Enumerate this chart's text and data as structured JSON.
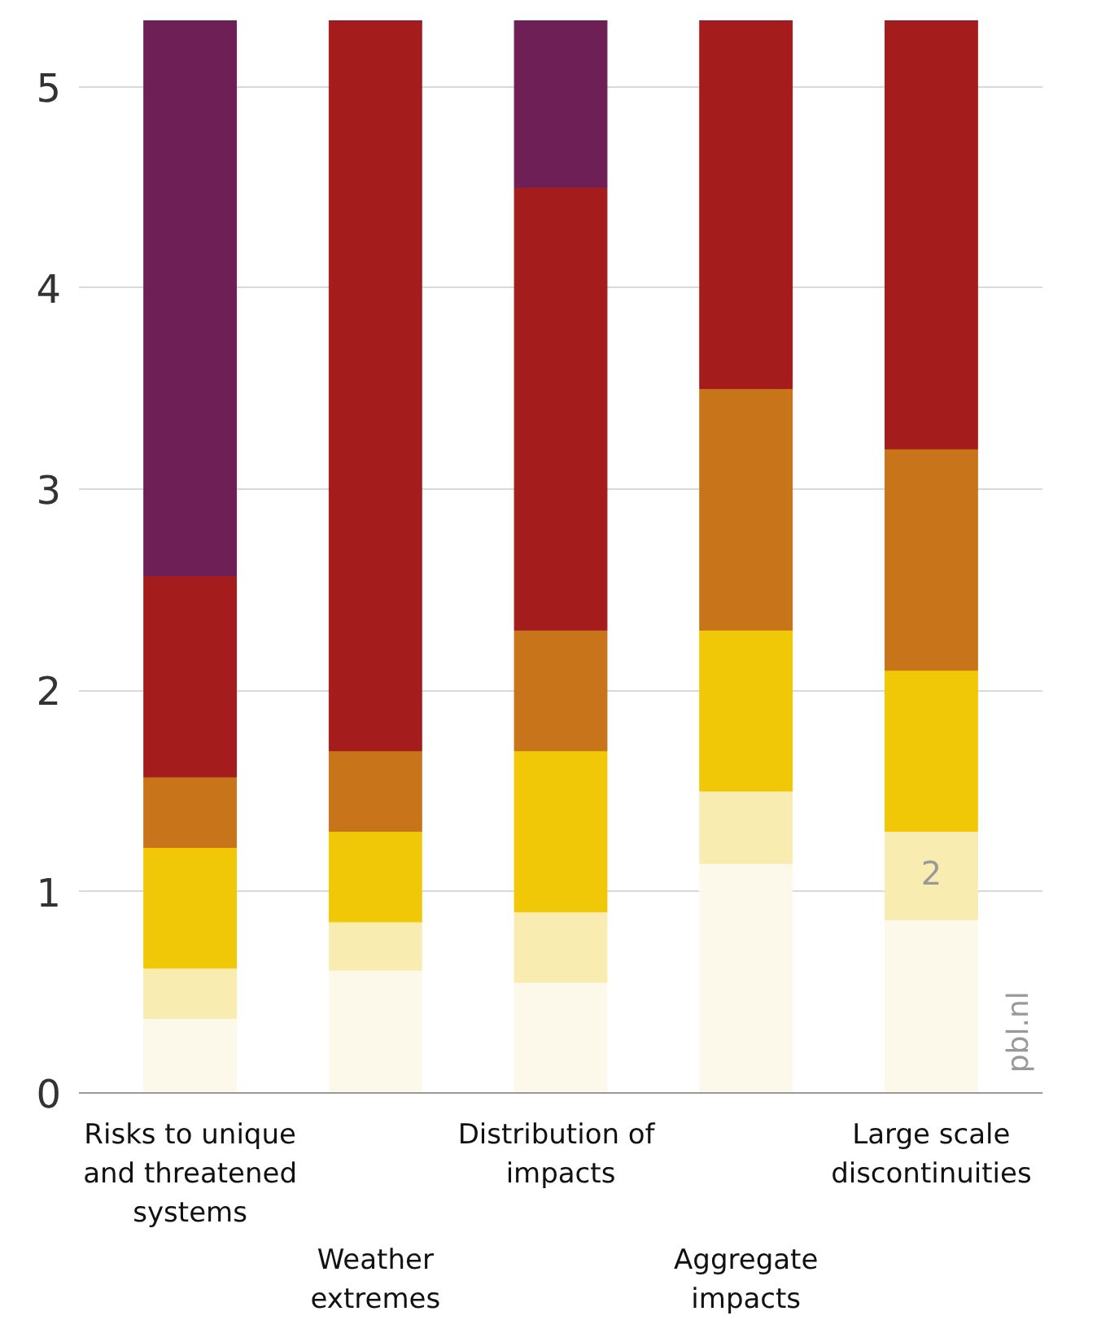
{
  "chart_data": {
    "type": "bar",
    "stacked": true,
    "categories": [
      "Risks to unique\nand threatened\nsystems",
      "Weather\nextremes",
      "Distribution  of\nimpacts",
      "Aggregate\nimpacts",
      "Large scale\ndiscontinuities"
    ],
    "series": [
      {
        "color": "#fcf8ea",
        "values": [
          0.37,
          0.61,
          0.55,
          1.14,
          0.86
        ]
      },
      {
        "color": "#f8ecb0",
        "values": [
          0.25,
          0.24,
          0.35,
          0.36,
          0.44
        ]
      },
      {
        "color": "#f0c808",
        "values": [
          0.6,
          0.45,
          0.8,
          0.8,
          0.8
        ]
      },
      {
        "color": "#c8741a",
        "values": [
          0.35,
          0.4,
          0.6,
          1.2,
          1.1
        ]
      },
      {
        "color": "#a51c1c",
        "values": [
          1.0,
          3.63,
          2.2,
          1.83,
          2.13
        ]
      },
      {
        "color": "#6e1f56",
        "values": [
          2.78,
          0,
          0.83,
          0,
          0
        ]
      }
    ],
    "ylim": [
      0,
      5.33
    ],
    "yticks": [
      0,
      1,
      2,
      3,
      4,
      5
    ],
    "grid": "y",
    "annotations": [
      "2",
      "pbl.nl"
    ]
  }
}
